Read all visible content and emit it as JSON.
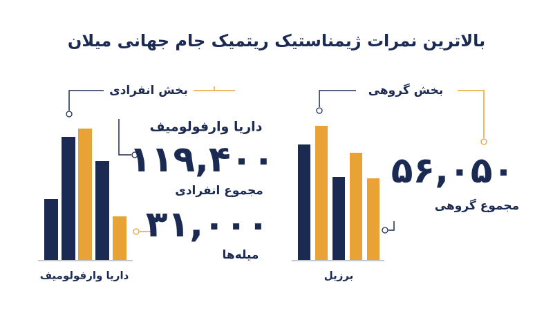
{
  "title": "بالاترین نمرات ژیمناستیک ریتمیک جام جهانی میلان",
  "group": {
    "heading": "بخش گروهی",
    "total": "۵۶,۰۵۰",
    "total_label": "مجموع گروهی",
    "country": "برزیل"
  },
  "individual": {
    "heading": "بخش انفرادی",
    "athlete": "داریا وارفولومیف",
    "total": "۱۱۹,۴۰۰",
    "total_label": "مجموع انفرادی",
    "bar_score": "۳۱,۰۰۰",
    "bar_label": "میله‌ها",
    "chart_label": "داریا وارفولومیف"
  }
}
